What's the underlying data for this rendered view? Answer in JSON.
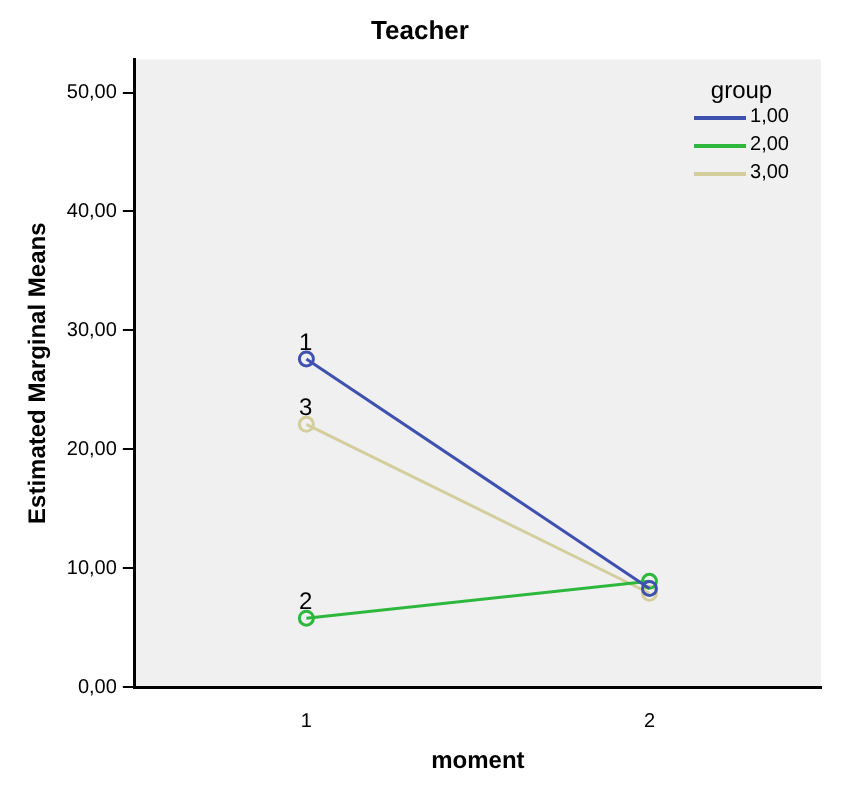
{
  "chart_data": {
    "type": "line",
    "title": "Teacher",
    "xlabel": "moment",
    "ylabel": "Estimated Marginal Means",
    "legend_title": "group",
    "categories": [
      "1",
      "2"
    ],
    "series": [
      {
        "name": "1,00",
        "color": "#3f51b0",
        "values": [
          27.6,
          8.3
        ]
      },
      {
        "name": "2,00",
        "color": "#2db83d",
        "values": [
          5.8,
          8.9
        ]
      },
      {
        "name": "3,00",
        "color": "#d3ce9c",
        "values": [
          22.1,
          7.9
        ]
      }
    ],
    "ylim": [
      0,
      52.8
    ],
    "yticks": [
      {
        "value": 0,
        "label": "0,00"
      },
      {
        "value": 10,
        "label": "10,00"
      },
      {
        "value": 20,
        "label": "20,00"
      },
      {
        "value": 30,
        "label": "30,00"
      },
      {
        "value": 40,
        "label": "40,00"
      },
      {
        "value": 50,
        "label": "50,00"
      }
    ],
    "annotations": [
      {
        "text": "1",
        "x": "1",
        "y": 27.6
      },
      {
        "text": "2",
        "x": "1",
        "y": 5.8
      },
      {
        "text": "3",
        "x": "1",
        "y": 22.1
      }
    ],
    "grid": false,
    "legend": "top right",
    "marker": "circle",
    "line_style": "solid"
  }
}
